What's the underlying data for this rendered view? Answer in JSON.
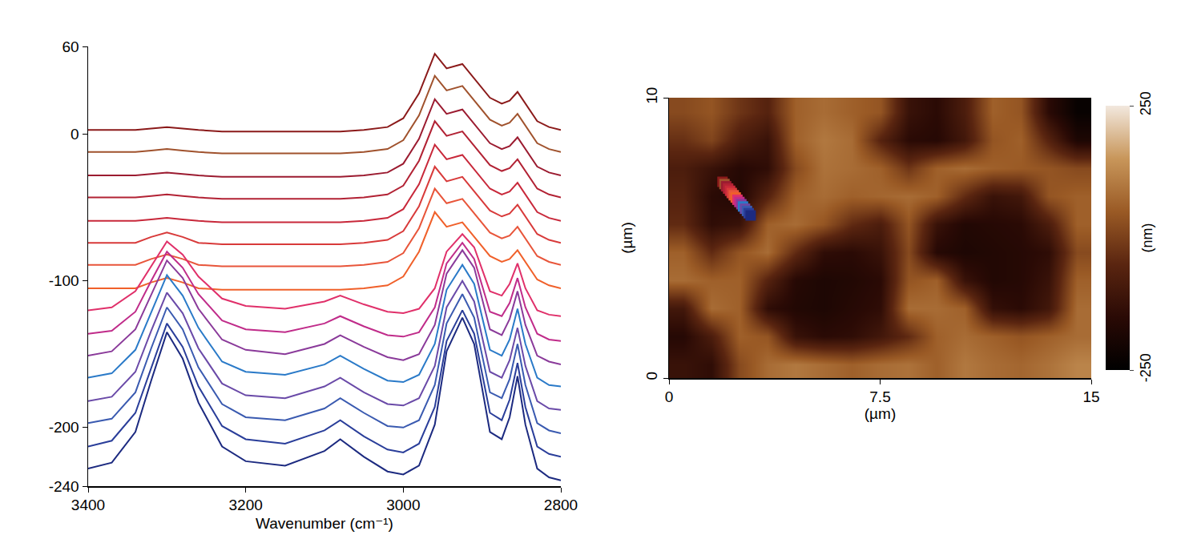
{
  "chart_data": [
    {
      "type": "line",
      "x_label": "Wavenumber (cm⁻¹)",
      "x": [
        3400,
        3370,
        3340,
        3320,
        3300,
        3280,
        3260,
        3230,
        3200,
        3150,
        3100,
        3080,
        3050,
        3020,
        3000,
        2980,
        2960,
        2945,
        2925,
        2910,
        2890,
        2875,
        2865,
        2855,
        2845,
        2830,
        2815,
        2800
      ],
      "xlim": [
        3400,
        2800
      ],
      "xticks": [
        3400,
        3200,
        3000,
        2800
      ],
      "ylim": [
        -240,
        60
      ],
      "yticks": [
        -240,
        -200,
        -100,
        0,
        60
      ],
      "grid": false,
      "line_style": "solid",
      "series": [
        {
          "color": "#8b1a1a",
          "values": [
            3,
            3,
            3,
            4,
            5,
            4,
            3,
            2,
            2,
            2,
            2,
            2,
            3,
            5,
            11,
            28,
            55,
            45,
            48,
            38,
            25,
            21,
            23,
            29,
            21,
            9,
            5,
            3
          ]
        },
        {
          "color": "#a0522d",
          "values": [
            -12,
            -12,
            -12,
            -11,
            -10,
            -11,
            -12,
            -13,
            -13,
            -13,
            -13,
            -13,
            -12,
            -10,
            -4,
            13,
            40,
            30,
            33,
            23,
            10,
            6,
            8,
            14,
            6,
            -6,
            -10,
            -12
          ]
        },
        {
          "color": "#9b1b30",
          "values": [
            -28,
            -28,
            -28,
            -27,
            -26,
            -27,
            -28,
            -29,
            -29,
            -29,
            -29,
            -29,
            -28,
            -26,
            -20,
            -3,
            24,
            14,
            17,
            7,
            -6,
            -10,
            -8,
            -2,
            -10,
            -22,
            -26,
            -28
          ]
        },
        {
          "color": "#b22234",
          "values": [
            -43,
            -43,
            -43,
            -42,
            -41,
            -42,
            -43,
            -44,
            -44,
            -44,
            -44,
            -44,
            -43,
            -41,
            -35,
            -18,
            9,
            -1,
            2,
            -8,
            -21,
            -25,
            -23,
            -17,
            -25,
            -37,
            -41,
            -43
          ]
        },
        {
          "color": "#c8283a",
          "values": [
            -59,
            -59,
            -59,
            -58,
            -57,
            -58,
            -59,
            -60,
            -60,
            -60,
            -60,
            -60,
            -59,
            -57,
            -51,
            -34,
            -7,
            -17,
            -14,
            -24,
            -37,
            -41,
            -39,
            -33,
            -41,
            -53,
            -57,
            -59
          ]
        },
        {
          "color": "#d83a3a",
          "values": [
            -74,
            -74,
            -74,
            -70,
            -67,
            -70,
            -74,
            -75,
            -75,
            -75,
            -75,
            -75,
            -74,
            -72,
            -66,
            -49,
            -22,
            -32,
            -29,
            -39,
            -52,
            -56,
            -54,
            -48,
            -56,
            -68,
            -72,
            -74
          ]
        },
        {
          "color": "#e8553a",
          "values": [
            -89,
            -89,
            -89,
            -85,
            -82,
            -85,
            -89,
            -90,
            -90,
            -90,
            -90,
            -90,
            -89,
            -87,
            -81,
            -64,
            -37,
            -47,
            -44,
            -54,
            -67,
            -71,
            -69,
            -63,
            -71,
            -83,
            -87,
            -89
          ]
        },
        {
          "color": "#f0602a",
          "values": [
            -105,
            -105,
            -105,
            -101,
            -98,
            -101,
            -105,
            -106,
            -106,
            -106,
            -106,
            -106,
            -105,
            -103,
            -97,
            -80,
            -53,
            -63,
            -60,
            -70,
            -83,
            -87,
            -85,
            -79,
            -87,
            -99,
            -103,
            -105
          ]
        },
        {
          "color": "#e0306a",
          "values": [
            -120,
            -118,
            -107,
            -90,
            -73,
            -82,
            -97,
            -112,
            -117,
            -119,
            -114,
            -110,
            -116,
            -121,
            -122,
            -119,
            -105,
            -80,
            -68,
            -77,
            -107,
            -110,
            -102,
            -88,
            -105,
            -120,
            -123,
            -124
          ]
        },
        {
          "color": "#c02c8a",
          "values": [
            -136,
            -134,
            -121,
            -100,
            -80,
            -91,
            -109,
            -127,
            -133,
            -135,
            -129,
            -124,
            -131,
            -137,
            -138,
            -135,
            -118,
            -88,
            -74,
            -85,
            -121,
            -124,
            -115,
            -98,
            -118,
            -136,
            -140,
            -141
          ]
        },
        {
          "color": "#8a3a9a",
          "values": [
            -151,
            -148,
            -133,
            -109,
            -86,
            -98,
            -119,
            -140,
            -147,
            -150,
            -143,
            -137,
            -145,
            -152,
            -154,
            -150,
            -130,
            -95,
            -79,
            -91,
            -133,
            -137,
            -126,
            -107,
            -130,
            -151,
            -155,
            -157
          ]
        },
        {
          "color": "#2a7ac8",
          "values": [
            -166,
            -163,
            -147,
            -121,
            -96,
            -110,
            -132,
            -155,
            -162,
            -164,
            -157,
            -151,
            -160,
            -168,
            -169,
            -164,
            -143,
            -106,
            -89,
            -102,
            -147,
            -151,
            -140,
            -119,
            -143,
            -166,
            -171,
            -172
          ]
        },
        {
          "color": "#6a4aa8",
          "values": [
            -182,
            -179,
            -162,
            -134,
            -108,
            -122,
            -146,
            -170,
            -178,
            -180,
            -172,
            -166,
            -176,
            -184,
            -185,
            -180,
            -158,
            -118,
            -100,
            -114,
            -162,
            -166,
            -154,
            -132,
            -158,
            -182,
            -187,
            -188
          ]
        },
        {
          "color": "#3a5ab0",
          "values": [
            -197,
            -194,
            -176,
            -146,
            -118,
            -133,
            -159,
            -184,
            -193,
            -195,
            -187,
            -180,
            -190,
            -199,
            -200,
            -195,
            -171,
            -129,
            -109,
            -125,
            -176,
            -180,
            -167,
            -143,
            -171,
            -197,
            -202,
            -204
          ]
        },
        {
          "color": "#2a3e9a",
          "values": [
            -213,
            -209,
            -190,
            -159,
            -129,
            -145,
            -172,
            -199,
            -208,
            -211,
            -202,
            -195,
            -206,
            -215,
            -217,
            -211,
            -186,
            -141,
            -120,
            -136,
            -190,
            -195,
            -181,
            -156,
            -186,
            -213,
            -218,
            -220
          ]
        },
        {
          "color": "#1c2a80",
          "values": [
            -228,
            -224,
            -203,
            -168,
            -135,
            -153,
            -183,
            -213,
            -223,
            -226,
            -216,
            -208,
            -220,
            -230,
            -232,
            -226,
            -198,
            -148,
            -125,
            -143,
            -203,
            -208,
            -193,
            -165,
            -198,
            -228,
            -234,
            -236
          ]
        }
      ]
    },
    {
      "type": "heatmap",
      "x_label": "(µm)",
      "y_label": "(µm)",
      "x": [
        0.5,
        1.5,
        2.5,
        3.5,
        4.5,
        5.5,
        6.5,
        7.5,
        8.5,
        9.5,
        10.5,
        11.5,
        12.5,
        13.5,
        14.5
      ],
      "y": [
        0.5,
        1.5,
        2.5,
        3.5,
        4.5,
        5.5,
        6.5,
        7.5,
        8.5,
        9.5
      ],
      "xlim": [
        0,
        15
      ],
      "xticks": [
        0,
        7.5,
        15
      ],
      "ylim": [
        0,
        10
      ],
      "yticks": [
        0,
        10
      ],
      "grid": false,
      "z": [
        [
          -120,
          -140,
          20,
          80,
          100,
          80,
          60,
          80,
          90,
          60,
          100,
          80,
          70,
          90,
          120
        ],
        [
          -160,
          -80,
          60,
          40,
          -120,
          -150,
          -140,
          -100,
          -40,
          60,
          80,
          60,
          40,
          60,
          80
        ],
        [
          -100,
          80,
          60,
          -140,
          -170,
          -180,
          -160,
          -140,
          80,
          80,
          60,
          -130,
          -150,
          -100,
          80
        ],
        [
          80,
          60,
          60,
          -60,
          -160,
          -180,
          -170,
          -150,
          40,
          60,
          -120,
          -170,
          -160,
          -120,
          60
        ],
        [
          60,
          -40,
          40,
          80,
          -40,
          -140,
          -150,
          -120,
          20,
          -160,
          -180,
          -170,
          -160,
          -140,
          20
        ],
        [
          -40,
          -140,
          -120,
          60,
          80,
          40,
          -40,
          -80,
          40,
          -120,
          -170,
          -160,
          -150,
          -80,
          60
        ],
        [
          -60,
          -150,
          -170,
          -60,
          60,
          80,
          60,
          70,
          80,
          60,
          -40,
          -120,
          -100,
          40,
          60
        ],
        [
          -80,
          -120,
          -160,
          -140,
          20,
          90,
          80,
          60,
          -20,
          60,
          80,
          60,
          50,
          40,
          20
        ],
        [
          -30,
          10,
          -80,
          -120,
          60,
          100,
          80,
          -60,
          -150,
          -160,
          -100,
          40,
          60,
          -60,
          -180
        ],
        [
          20,
          40,
          -20,
          -60,
          60,
          80,
          60,
          40,
          -120,
          -150,
          -80,
          60,
          40,
          -150,
          -230
        ]
      ],
      "colorbar": {
        "title": "(nm)",
        "range": [
          -250,
          250
        ],
        "ticks": [
          -250,
          250
        ]
      },
      "points": {
        "marker": "square",
        "x": [
          1.9,
          1.97,
          2.03,
          2.1,
          2.17,
          2.23,
          2.3,
          2.37,
          2.43,
          2.5,
          2.57,
          2.63,
          2.7,
          2.77,
          2.83,
          2.9
        ],
        "y": [
          7.0,
          6.92,
          6.84,
          6.76,
          6.68,
          6.6,
          6.52,
          6.44,
          6.36,
          6.28,
          6.2,
          6.12,
          6.04,
          5.96,
          5.88,
          5.8
        ],
        "colors": [
          "#8b1a1a",
          "#a0522d",
          "#9b1b30",
          "#b22234",
          "#c8283a",
          "#d83a3a",
          "#e8553a",
          "#f0602a",
          "#e0306a",
          "#c02c8a",
          "#8a3a9a",
          "#2a7ac8",
          "#6a4aa8",
          "#3a5ab0",
          "#2a3e9a",
          "#1c2a80"
        ]
      }
    }
  ]
}
